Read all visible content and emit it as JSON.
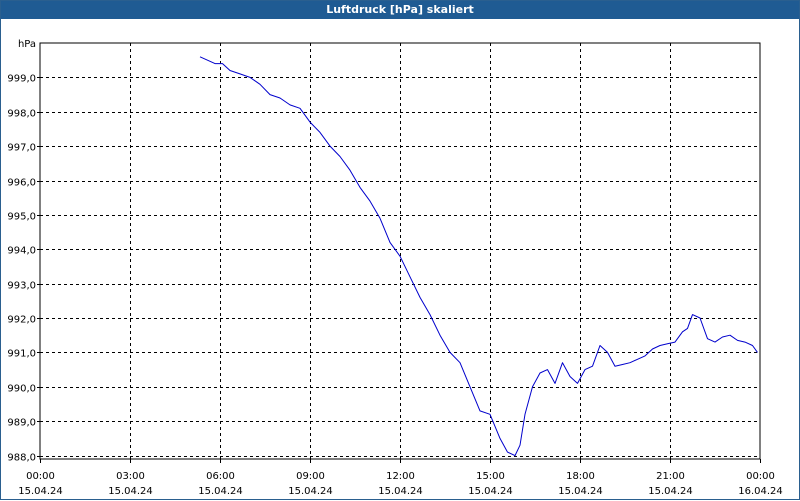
{
  "window": {
    "title": "Luftdruck [hPa] skaliert"
  },
  "colors": {
    "title_bar": "#1f5b93",
    "series_line": "#0000cc",
    "grid": "#000000",
    "background": "#ffffff"
  },
  "chart_data": {
    "type": "line",
    "title": "Luftdruck [hPa] skaliert",
    "ylabel": "hPa",
    "xlabel": "",
    "grid": true,
    "grid_style": "dashed",
    "ylim": [
      987.9,
      1000.0
    ],
    "yticks": [
      {
        "value": 988.0,
        "label": "988,0"
      },
      {
        "value": 989.0,
        "label": "989,0"
      },
      {
        "value": 990.0,
        "label": "990,0"
      },
      {
        "value": 991.0,
        "label": "991,0"
      },
      {
        "value": 992.0,
        "label": "992,0"
      },
      {
        "value": 993.0,
        "label": "993,0"
      },
      {
        "value": 994.0,
        "label": "994,0"
      },
      {
        "value": 995.0,
        "label": "995,0"
      },
      {
        "value": 996.0,
        "label": "996,0"
      },
      {
        "value": 997.0,
        "label": "997,0"
      },
      {
        "value": 998.0,
        "label": "998,0"
      },
      {
        "value": 999.0,
        "label": "999,0"
      }
    ],
    "xlim": [
      "15.04.24 00:00",
      "16.04.24 00:00"
    ],
    "xticks": [
      {
        "time": "15.04.24 00:00",
        "label_time": "00:00",
        "label_date": "15.04.24"
      },
      {
        "time": "15.04.24 03:00",
        "label_time": "03:00",
        "label_date": "15.04.24"
      },
      {
        "time": "15.04.24 06:00",
        "label_time": "06:00",
        "label_date": "15.04.24"
      },
      {
        "time": "15.04.24 09:00",
        "label_time": "09:00",
        "label_date": "15.04.24"
      },
      {
        "time": "15.04.24 12:00",
        "label_time": "12:00",
        "label_date": "15.04.24"
      },
      {
        "time": "15.04.24 15:00",
        "label_time": "15:00",
        "label_date": "15.04.24"
      },
      {
        "time": "15.04.24 18:00",
        "label_time": "18:00",
        "label_date": "15.04.24"
      },
      {
        "time": "15.04.24 21:00",
        "label_time": "21:00",
        "label_date": "15.04.24"
      },
      {
        "time": "16.04.24 00:00",
        "label_time": "00:00",
        "label_date": "16.04.24"
      }
    ],
    "series": [
      {
        "x": [
          "15.04.24 05:20",
          "15.04.24 05:35",
          "15.04.24 05:50",
          "15.04.24 06:05",
          "15.04.24 06:20",
          "15.04.24 06:40",
          "15.04.24 07:00",
          "15.04.24 07:20",
          "15.04.24 07:40",
          "15.04.24 08:00",
          "15.04.24 08:20",
          "15.04.24 08:40",
          "15.04.24 09:00",
          "15.04.24 09:20",
          "15.04.24 09:40",
          "15.04.24 10:00",
          "15.04.24 10:20",
          "15.04.24 10:40",
          "15.04.24 11:00",
          "15.04.24 11:20",
          "15.04.24 11:40",
          "15.04.24 12:00",
          "15.04.24 12:20",
          "15.04.24 12:40",
          "15.04.24 13:00",
          "15.04.24 13:20",
          "15.04.24 13:40",
          "15.04.24 14:00",
          "15.04.24 14:20",
          "15.04.24 14:40",
          "15.04.24 15:00",
          "15.04.24 15:20",
          "15.04.24 15:35",
          "15.04.24 15:50",
          "15.04.24 16:00",
          "15.04.24 16:10",
          "15.04.24 16:25",
          "15.04.24 16:40",
          "15.04.24 16:55",
          "15.04.24 17:10",
          "15.04.24 17:25",
          "15.04.24 17:40",
          "15.04.24 17:55",
          "15.04.24 18:10",
          "15.04.24 18:25",
          "15.04.24 18:40",
          "15.04.24 18:55",
          "15.04.24 19:10",
          "15.04.24 19:25",
          "15.04.24 19:40",
          "15.04.24 19:55",
          "15.04.24 20:10",
          "15.04.24 20:25",
          "15.04.24 20:40",
          "15.04.24 20:55",
          "15.04.24 21:10",
          "15.04.24 21:25",
          "15.04.24 21:35",
          "15.04.24 21:45",
          "15.04.24 22:00",
          "15.04.24 22:15",
          "15.04.24 22:30",
          "15.04.24 22:45",
          "15.04.24 23:00",
          "15.04.24 23:15",
          "15.04.24 23:30",
          "15.04.24 23:45",
          "15.04.24 23:55"
        ],
        "y": [
          999.6,
          999.5,
          999.4,
          999.4,
          999.2,
          999.1,
          999.0,
          998.8,
          998.5,
          998.4,
          998.2,
          998.1,
          997.7,
          997.4,
          997.0,
          996.7,
          996.3,
          995.8,
          995.4,
          994.9,
          994.2,
          993.8,
          993.2,
          992.6,
          992.1,
          991.5,
          991.0,
          990.7,
          990.0,
          989.3,
          989.2,
          988.5,
          988.1,
          988.0,
          988.3,
          989.2,
          990.0,
          990.4,
          990.5,
          990.1,
          990.7,
          990.3,
          990.1,
          990.5,
          990.6,
          991.2,
          991.0,
          990.6,
          990.65,
          990.7,
          990.8,
          990.9,
          991.1,
          991.2,
          991.25,
          991.3,
          991.6,
          991.7,
          992.1,
          992.0,
          991.4,
          991.3,
          991.45,
          991.5,
          991.35,
          991.3,
          991.2,
          991.0
        ]
      }
    ]
  }
}
